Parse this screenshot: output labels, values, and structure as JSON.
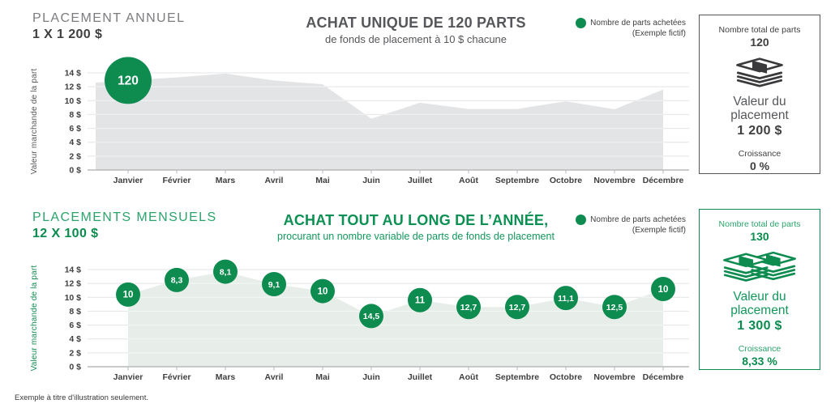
{
  "colors": {
    "green": "#0e8c50",
    "green_light": "#2ba46c",
    "area_gray": "#e3e4e6",
    "area_green": "#e7eee9",
    "grid": "#e4e4e6",
    "baseline": "#b9babc",
    "dark_text": "#3f3f41",
    "title_gray": "#56575a"
  },
  "footer": {
    "note": "Exemple à titre d'illustration seulement."
  },
  "sections": [
    {
      "id": "placement-annuel",
      "eyebrow": "PLACEMENT ANNUEL",
      "amount": "1 X 1 200 $",
      "headline": "ACHAT UNIQUE DE 120 PARTS",
      "headline_sub": "de fonds de placement à 10 $ chacune",
      "legend": {
        "label": "Nombre de parts achetées",
        "note": "(Exemple fictif)"
      },
      "summary": {
        "parts_label": "Nombre total de parts",
        "parts_value": "120",
        "icon": "money-stack-icon",
        "value_label": "Valeur du placement",
        "value_amount": "1 200 $",
        "growth_label": "Croissance",
        "growth_value": "0 %"
      }
    },
    {
      "id": "placements-mensuels",
      "eyebrow": "PLACEMENTS MENSUELS",
      "amount": "12 X 100 $",
      "headline": "ACHAT TOUT AU LONG DE L’ANNÉE,",
      "headline_sub": "procurant un nombre variable de parts de fonds de placement",
      "legend": {
        "label": "Nombre de parts achetées",
        "note": "(Exemple fictif)"
      },
      "summary": {
        "parts_label": "Nombre total de parts",
        "parts_value": "130",
        "icon": "double-money-stack-icon",
        "value_label": "Valeur du placement",
        "value_amount": "1 300 $",
        "growth_label": "Croissance",
        "growth_value": "8,33 %"
      }
    }
  ],
  "chart_data": [
    {
      "type": "area",
      "title": "ACHAT UNIQUE DE 120 PARTS",
      "subtitle": "de fonds de placement à 10 $ chacune",
      "legend": "Nombre de parts achetées (Exemple fictif)",
      "ylabel": "Valeur marchande de la part",
      "xlabel": "",
      "ylim": [
        0,
        14
      ],
      "y_tick_step": 2,
      "y_tick_suffix": " $",
      "categories": [
        "Janvier",
        "Février",
        "Mars",
        "Avril",
        "Mai",
        "Juin",
        "Juillet",
        "Août",
        "Septembre",
        "Octobre",
        "Novembre",
        "Décembre"
      ],
      "series": [
        {
          "name": "Valeur marchande de la part ($)",
          "values": [
            12.9,
            13.35,
            13.9,
            12.9,
            12.35,
            7.4,
            9.7,
            8.8,
            8.8,
            9.9,
            8.75,
            11.6
          ]
        }
      ],
      "markers": [
        {
          "index": 0,
          "label": "120",
          "value": 12.9
        }
      ]
    },
    {
      "type": "area",
      "title": "ACHAT TOUT AU LONG DE L’ANNÉE,",
      "subtitle": "procurant un nombre variable de parts de fonds de placement",
      "legend": "Nombre de parts achetées (Exemple fictif)",
      "ylabel": "Valeur marchande de la part",
      "xlabel": "",
      "ylim": [
        0,
        14
      ],
      "y_tick_step": 2,
      "y_tick_suffix": " $",
      "categories": [
        "Janvier",
        "Février",
        "Mars",
        "Avril",
        "Mai",
        "Juin",
        "Juillet",
        "Août",
        "Septembre",
        "Octobre",
        "Novembre",
        "Décembre"
      ],
      "series": [
        {
          "name": "Valeur marchande de la part ($)",
          "values": [
            10.4,
            12.5,
            13.7,
            11.9,
            10.9,
            7.3,
            9.6,
            8.6,
            8.6,
            9.9,
            8.6,
            11.2
          ]
        }
      ],
      "markers": [
        {
          "index": 0,
          "label": "10",
          "value": 10.4
        },
        {
          "index": 1,
          "label": "8,3",
          "value": 12.5
        },
        {
          "index": 2,
          "label": "8,1",
          "value": 13.7
        },
        {
          "index": 3,
          "label": "9,1",
          "value": 11.9
        },
        {
          "index": 4,
          "label": "10",
          "value": 10.9
        },
        {
          "index": 5,
          "label": "14,5",
          "value": 7.3
        },
        {
          "index": 6,
          "label": "11",
          "value": 9.6
        },
        {
          "index": 7,
          "label": "12,7",
          "value": 8.6
        },
        {
          "index": 8,
          "label": "12,7",
          "value": 8.6
        },
        {
          "index": 9,
          "label": "11,1",
          "value": 9.9
        },
        {
          "index": 10,
          "label": "12,5",
          "value": 8.6
        },
        {
          "index": 11,
          "label": "10",
          "value": 11.2
        }
      ]
    }
  ]
}
